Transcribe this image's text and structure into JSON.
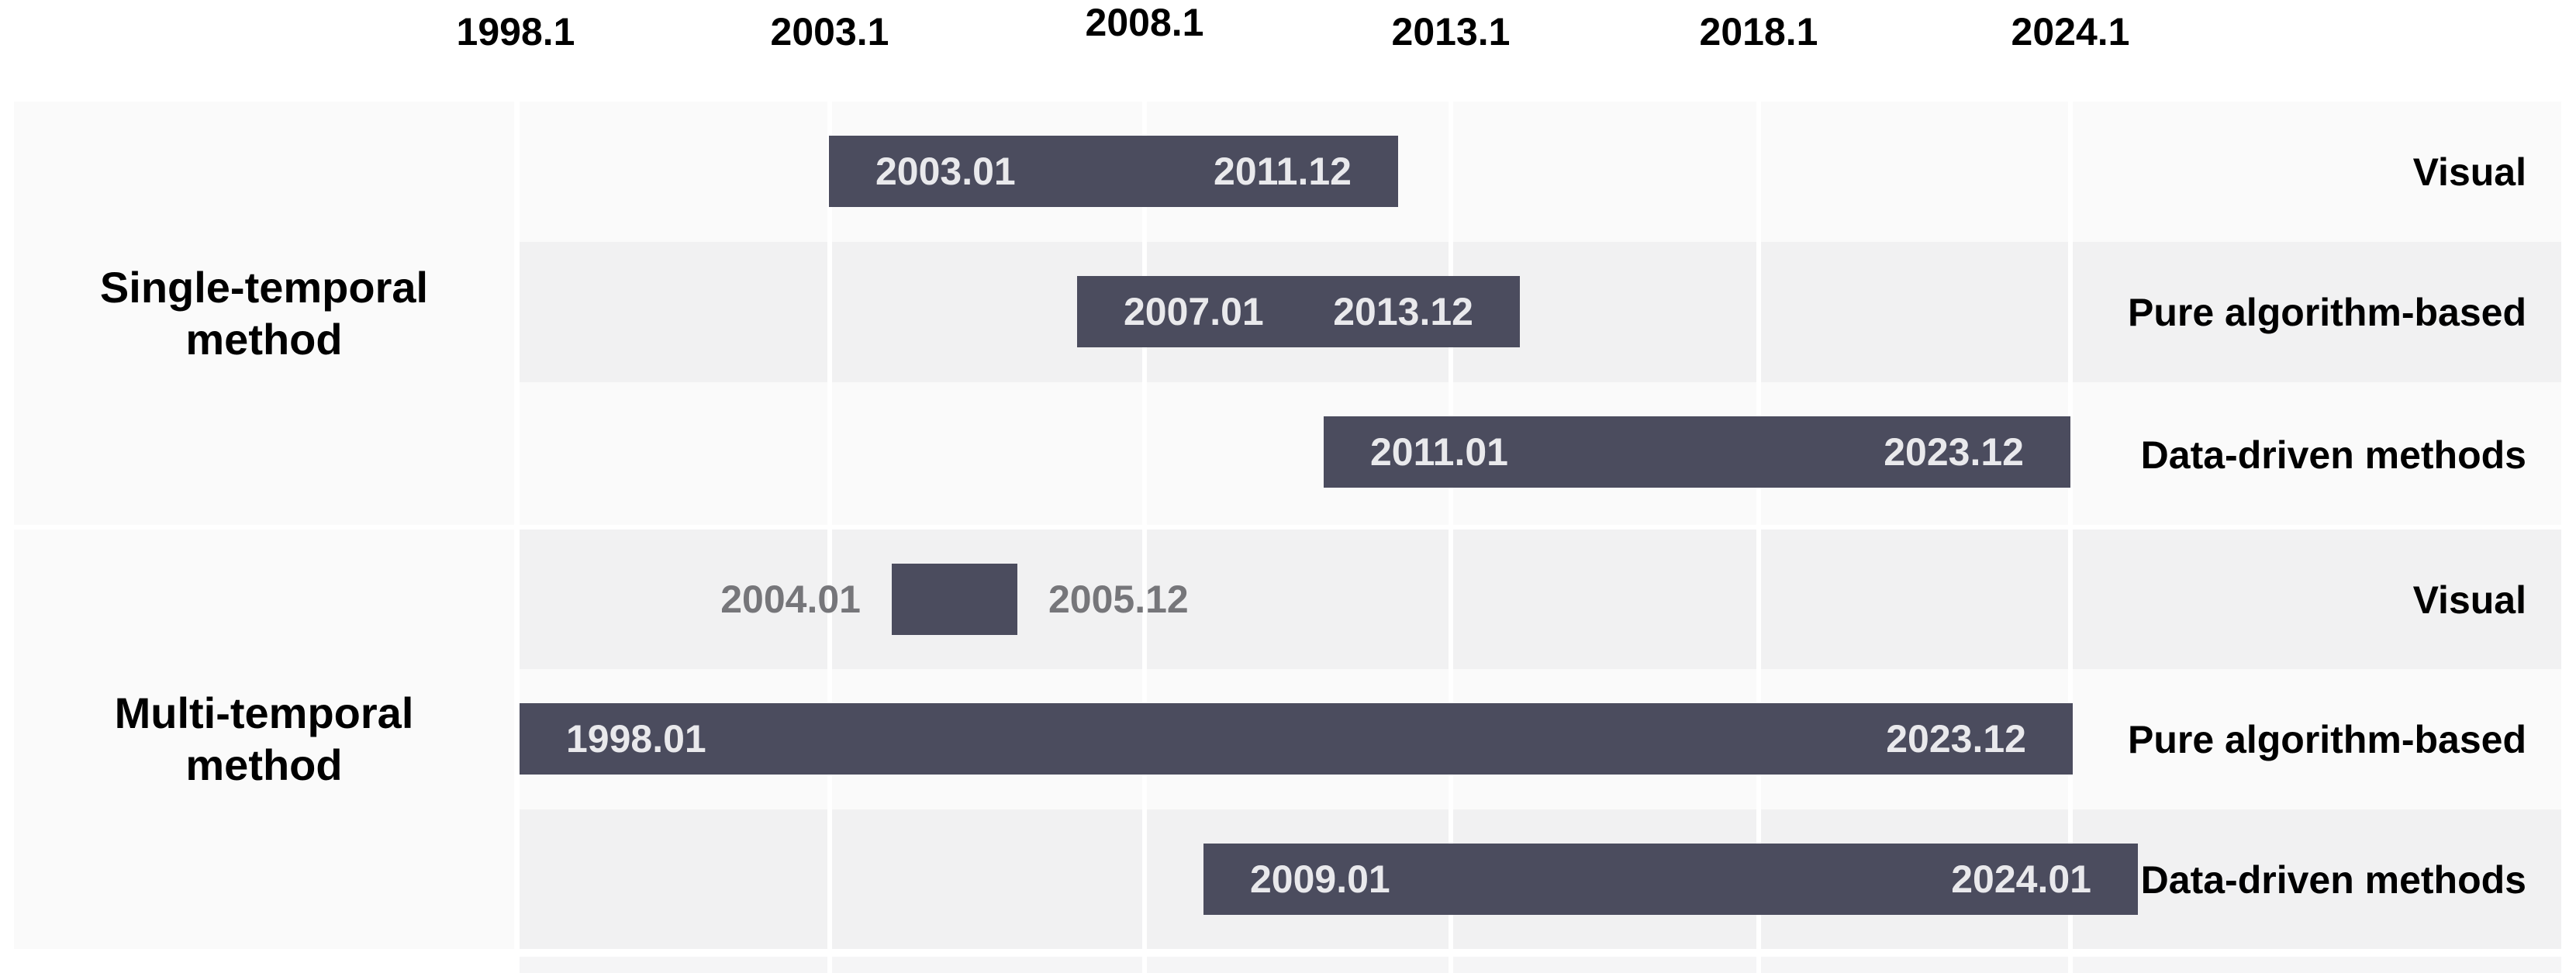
{
  "colors": {
    "bar": "#4b4c5e",
    "bar_text": "#e9e9ec",
    "band_light": "#fafafa",
    "band_dark": "#f1f1f2",
    "gutter": "#fafafa",
    "outside_label_gray": "#76767a",
    "axis_text": "#000000",
    "background": "#ffffff"
  },
  "axis": {
    "ticks": [
      {
        "label": "1998.1"
      },
      {
        "label": "2003.1"
      },
      {
        "label": "2008.1"
      },
      {
        "label": "2013.1"
      },
      {
        "label": "2018.1"
      },
      {
        "label": "2024.1"
      }
    ]
  },
  "groups": [
    {
      "line1": "Single-temporal",
      "line2": "method"
    },
    {
      "line1": "Multi-temporal",
      "line2": "method"
    }
  ],
  "rows": [
    {
      "label": "Visual",
      "bar": {
        "start_label": "2003.01",
        "end_label": "2011.12"
      }
    },
    {
      "label": "Pure algorithm-based",
      "bar": {
        "start_label": "2007.01",
        "end_label": "2013.12"
      }
    },
    {
      "label": "Data-driven methods",
      "bar": {
        "start_label": "2011.01",
        "end_label": "2023.12"
      }
    },
    {
      "label": "Visual",
      "bar": {
        "start_label": "2004.01",
        "end_label": "2005.12"
      }
    },
    {
      "label": "Pure algorithm-based",
      "bar": {
        "start_label": "1998.01",
        "end_label": "2023.12"
      }
    },
    {
      "label": "Data-driven methods",
      "bar": {
        "start_label": "2009.01",
        "end_label": "2024.01"
      }
    }
  ],
  "chart_data": {
    "type": "gantt",
    "title": "",
    "x_axis": {
      "tick_labels": [
        "1998.1",
        "2003.1",
        "2008.1",
        "2013.1",
        "2018.1",
        "2024.1"
      ],
      "raised_tick": "2008.1",
      "grid": true,
      "gridline_color": "#ffffff"
    },
    "groups": [
      {
        "name": "Single-temporal method",
        "rows": [
          {
            "category": "Visual",
            "start": "2003.01",
            "end": "2011.12",
            "value_labels": "inside"
          },
          {
            "category": "Pure algorithm-based",
            "start": "2007.01",
            "end": "2013.12",
            "value_labels": "inside"
          },
          {
            "category": "Data-driven methods",
            "start": "2011.01",
            "end": "2023.12",
            "value_labels": "inside"
          }
        ]
      },
      {
        "name": "Multi-temporal method",
        "rows": [
          {
            "category": "Visual",
            "start": "2004.01",
            "end": "2005.12",
            "value_labels": "outside-gray"
          },
          {
            "category": "Pure algorithm-based",
            "start": "1998.01",
            "end": "2023.12",
            "value_labels": "inside"
          },
          {
            "category": "Data-driven methods",
            "start": "2009.01",
            "end": "2024.01",
            "value_labels": "inside"
          }
        ]
      }
    ],
    "layout_hints": {
      "row_shading_alternates": [
        "light",
        "dark",
        "light",
        "dark",
        "light",
        "dark"
      ],
      "category_labels_position": "right",
      "group_labels_position": "left",
      "bars_color": "#4b4c5e"
    }
  }
}
